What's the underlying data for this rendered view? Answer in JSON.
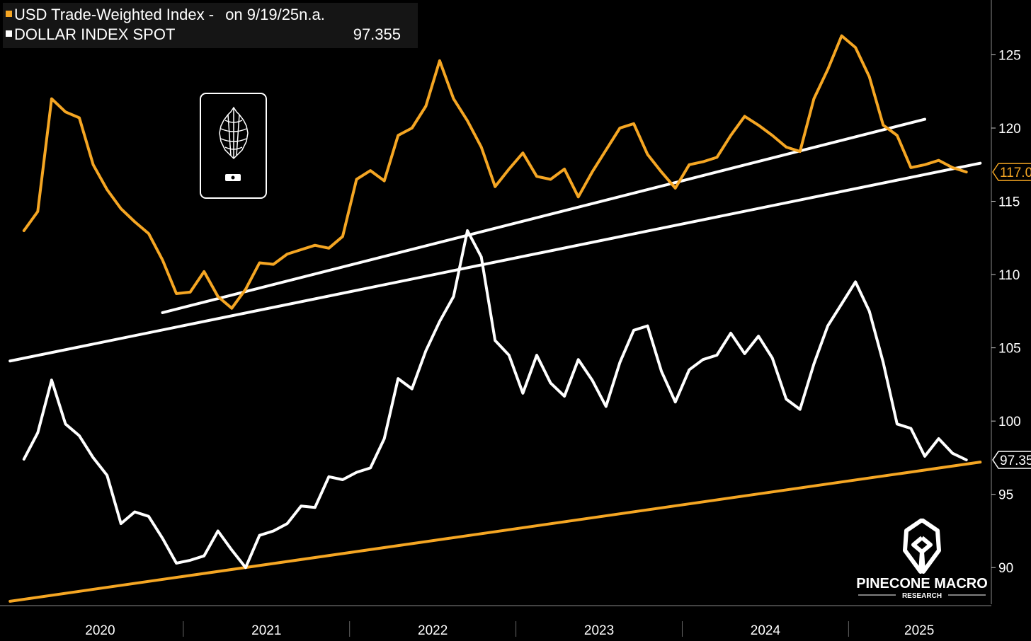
{
  "legend": {
    "series1": {
      "label": "USD Trade-Weighted Index -",
      "date_note": "on 9/19/25",
      "value": "n.a.",
      "color": "#f5a623"
    },
    "series2": {
      "label": "DOLLAR INDEX SPOT",
      "value": "97.355",
      "color": "#ffffff"
    }
  },
  "branding": {
    "name": "PINECONE MACRO",
    "sub": "RESEARCH"
  },
  "chart_data": {
    "type": "line",
    "x_labels": [
      "2020",
      "2021",
      "2022",
      "2023",
      "2024",
      "2025"
    ],
    "ylim": [
      87.5,
      128.5
    ],
    "y_ticks": [
      90,
      95,
      100,
      105,
      110,
      115,
      120,
      125
    ],
    "grid": false,
    "y_axis_side": "right",
    "series": [
      {
        "name": "USD Trade-Weighted Index",
        "color": "#f5a623",
        "last_label": "117.0",
        "points": [
          [
            "2020-01",
            113.0
          ],
          [
            "2020-02",
            114.3
          ],
          [
            "2020-03",
            122.0
          ],
          [
            "2020-04",
            121.1
          ],
          [
            "2020-05",
            120.7
          ],
          [
            "2020-06",
            117.5
          ],
          [
            "2020-07",
            115.8
          ],
          [
            "2020-08",
            114.5
          ],
          [
            "2020-09",
            113.6
          ],
          [
            "2020-10",
            112.8
          ],
          [
            "2020-11",
            111.0
          ],
          [
            "2020-12",
            108.7
          ],
          [
            "2021-01",
            108.8
          ],
          [
            "2021-02",
            110.2
          ],
          [
            "2021-03",
            108.5
          ],
          [
            "2021-04",
            107.7
          ],
          [
            "2021-05",
            109.0
          ],
          [
            "2021-06",
            110.8
          ],
          [
            "2021-07",
            110.7
          ],
          [
            "2021-08",
            111.4
          ],
          [
            "2021-09",
            111.7
          ],
          [
            "2021-10",
            112.0
          ],
          [
            "2021-11",
            111.8
          ],
          [
            "2021-12",
            112.6
          ],
          [
            "2022-01",
            116.5
          ],
          [
            "2022-02",
            117.1
          ],
          [
            "2022-03",
            116.4
          ],
          [
            "2022-04",
            119.5
          ],
          [
            "2022-05",
            120.0
          ],
          [
            "2022-06",
            121.5
          ],
          [
            "2022-07",
            124.6
          ],
          [
            "2022-08",
            122.0
          ],
          [
            "2022-09",
            120.5
          ],
          [
            "2022-10",
            118.7
          ],
          [
            "2022-11",
            116.0
          ],
          [
            "2022-12",
            117.2
          ],
          [
            "2023-01",
            118.3
          ],
          [
            "2023-02",
            116.7
          ],
          [
            "2023-03",
            116.5
          ],
          [
            "2023-04",
            117.2
          ],
          [
            "2023-05",
            115.3
          ],
          [
            "2023-06",
            117.0
          ],
          [
            "2023-07",
            118.5
          ],
          [
            "2023-08",
            120.0
          ],
          [
            "2023-09",
            120.3
          ],
          [
            "2023-10",
            118.2
          ],
          [
            "2023-11",
            117.0
          ],
          [
            "2023-12",
            115.9
          ],
          [
            "2024-01",
            117.5
          ],
          [
            "2024-02",
            117.7
          ],
          [
            "2024-03",
            118.0
          ],
          [
            "2024-04",
            119.5
          ],
          [
            "2024-05",
            120.8
          ],
          [
            "2024-06",
            120.2
          ],
          [
            "2024-07",
            119.5
          ],
          [
            "2024-08",
            118.7
          ],
          [
            "2024-09",
            118.4
          ],
          [
            "2024-10",
            122.0
          ],
          [
            "2024-11",
            124.0
          ],
          [
            "2024-12",
            126.3
          ],
          [
            "2025-01",
            125.5
          ],
          [
            "2025-02",
            123.5
          ],
          [
            "2025-03",
            120.2
          ],
          [
            "2025-04",
            119.5
          ],
          [
            "2025-05",
            117.3
          ],
          [
            "2025-06",
            117.5
          ],
          [
            "2025-07",
            117.8
          ],
          [
            "2025-08",
            117.3
          ],
          [
            "2025-09",
            117.0
          ]
        ]
      },
      {
        "name": "DOLLAR INDEX SPOT",
        "color": "#ffffff",
        "last_label": "97.35",
        "points": [
          [
            "2020-01",
            97.4
          ],
          [
            "2020-02",
            99.2
          ],
          [
            "2020-03",
            102.8
          ],
          [
            "2020-04",
            99.8
          ],
          [
            "2020-05",
            99.0
          ],
          [
            "2020-06",
            97.5
          ],
          [
            "2020-07",
            96.3
          ],
          [
            "2020-08",
            93.0
          ],
          [
            "2020-09",
            93.8
          ],
          [
            "2020-10",
            93.5
          ],
          [
            "2020-11",
            92.0
          ],
          [
            "2020-12",
            90.3
          ],
          [
            "2021-01",
            90.5
          ],
          [
            "2021-02",
            90.8
          ],
          [
            "2021-03",
            92.5
          ],
          [
            "2021-04",
            91.2
          ],
          [
            "2021-05",
            90.0
          ],
          [
            "2021-06",
            92.2
          ],
          [
            "2021-07",
            92.5
          ],
          [
            "2021-08",
            93.0
          ],
          [
            "2021-09",
            94.2
          ],
          [
            "2021-10",
            94.1
          ],
          [
            "2021-11",
            96.2
          ],
          [
            "2021-12",
            96.0
          ],
          [
            "2022-01",
            96.5
          ],
          [
            "2022-02",
            96.8
          ],
          [
            "2022-03",
            98.8
          ],
          [
            "2022-04",
            102.9
          ],
          [
            "2022-05",
            102.2
          ],
          [
            "2022-06",
            104.8
          ],
          [
            "2022-07",
            106.8
          ],
          [
            "2022-08",
            108.5
          ],
          [
            "2022-09",
            113.0
          ],
          [
            "2022-10",
            111.2
          ],
          [
            "2022-11",
            105.5
          ],
          [
            "2022-12",
            104.5
          ],
          [
            "2023-01",
            101.9
          ],
          [
            "2023-02",
            104.5
          ],
          [
            "2023-03",
            102.6
          ],
          [
            "2023-04",
            101.7
          ],
          [
            "2023-05",
            104.2
          ],
          [
            "2023-06",
            102.8
          ],
          [
            "2023-07",
            101.0
          ],
          [
            "2023-08",
            104.0
          ],
          [
            "2023-09",
            106.2
          ],
          [
            "2023-10",
            106.5
          ],
          [
            "2023-11",
            103.4
          ],
          [
            "2023-12",
            101.3
          ],
          [
            "2024-01",
            103.5
          ],
          [
            "2024-02",
            104.2
          ],
          [
            "2024-03",
            104.5
          ],
          [
            "2024-04",
            106.0
          ],
          [
            "2024-05",
            104.6
          ],
          [
            "2024-06",
            105.8
          ],
          [
            "2024-07",
            104.3
          ],
          [
            "2024-08",
            101.5
          ],
          [
            "2024-09",
            100.8
          ],
          [
            "2024-10",
            103.9
          ],
          [
            "2024-11",
            106.5
          ],
          [
            "2024-12",
            108.0
          ],
          [
            "2025-01",
            109.5
          ],
          [
            "2025-02",
            107.5
          ],
          [
            "2025-03",
            104.0
          ],
          [
            "2025-04",
            99.8
          ],
          [
            "2025-05",
            99.5
          ],
          [
            "2025-06",
            97.6
          ],
          [
            "2025-07",
            98.8
          ],
          [
            "2025-08",
            97.8
          ],
          [
            "2025-09",
            97.35
          ]
        ]
      }
    ],
    "trendlines": [
      {
        "color": "#ffffff",
        "from": [
          "2019-12",
          104.1
        ],
        "to": [
          "2025-10",
          117.6
        ]
      },
      {
        "color": "#ffffff",
        "from": [
          "2020-11",
          107.4
        ],
        "to": [
          "2025-06",
          120.6
        ]
      },
      {
        "color": "#f5a623",
        "from": [
          "2019-12",
          87.7
        ],
        "to": [
          "2025-10",
          97.2
        ]
      }
    ]
  }
}
